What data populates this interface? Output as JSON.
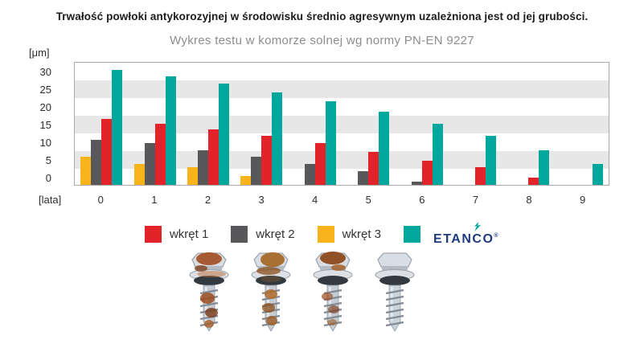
{
  "title": "Trwałość powłoki antykorozyjnej w środowisku średnio agresywnym uzależniona jest od jej grubości.",
  "subtitle": "Wykres testu w komorze solnej wg normy PN-EN 9227",
  "y_axis_unit": "[μm]",
  "x_axis_unit": "[lata]",
  "colors": {
    "red": "#e2232a",
    "gray": "#58585a",
    "yellow": "#f9b41c",
    "teal": "#00a79d",
    "brand_navy": "#1e3a7e",
    "stripe_gray": "#e7e7e7",
    "plot_border": "#a9a9a9"
  },
  "legend": {
    "items": [
      {
        "label": "wkręt 1",
        "color": "#e2232a"
      },
      {
        "label": "wkręt 2",
        "color": "#58585a"
      },
      {
        "label": "wkręt 3",
        "color": "#f9b41c"
      },
      {
        "label": "ETANCO",
        "color": "#00a79d",
        "is_brand_logo": true
      }
    ]
  },
  "brand": {
    "name": "ETANCO",
    "registered_mark": "®",
    "text_color": "#1e3a7e",
    "icon": "etanco-spark-icon",
    "icon_color": "#00a79d"
  },
  "chart_data": {
    "type": "bar",
    "title": "Trwałość powłoki antykorozyjnej w środowisku średnio agresywnym uzależniona jest od jej grubości.",
    "subtitle": "Wykres testu w komorze solnej wg normy PN-EN 9227",
    "xlabel": "[lata]",
    "ylabel": "[μm]",
    "x": [
      0,
      1,
      2,
      3,
      4,
      5,
      6,
      7,
      8,
      9
    ],
    "series": [
      {
        "name": "wkręt 3",
        "color": "#f9b41c",
        "values": [
          8,
          6,
          5,
          2.5,
          0,
          0,
          0,
          0,
          0,
          0
        ]
      },
      {
        "name": "wkręt 2",
        "color": "#58585a",
        "values": [
          13,
          12,
          10,
          8,
          6,
          4,
          1,
          0,
          0,
          0
        ]
      },
      {
        "name": "wkręt 1",
        "color": "#e2232a",
        "values": [
          19,
          17.5,
          16,
          14,
          12,
          9.5,
          7,
          5,
          2,
          0
        ]
      },
      {
        "name": "ETANCO",
        "color": "#00a79d",
        "values": [
          33,
          31,
          29,
          26.5,
          24,
          21,
          17.5,
          14,
          10,
          6
        ]
      }
    ],
    "ylim": [
      0,
      35
    ],
    "yticks": [
      0,
      5,
      10,
      15,
      20,
      25,
      30
    ],
    "grid": "horizontal striped bands every 5 units (alternating white / light gray)",
    "legend_position": "bottom",
    "bar_order_in_group": [
      "wkręt 3",
      "wkręt 2",
      "wkręt 1",
      "ETANCO"
    ]
  },
  "footer_images": [
    {
      "name": "rusty-screw-photo-1",
      "rusty": true
    },
    {
      "name": "rusty-screw-photo-2",
      "rusty": true
    },
    {
      "name": "rusty-screw-photo-3",
      "rusty": true
    },
    {
      "name": "clean-etanco-screw-photo",
      "rusty": false
    }
  ]
}
